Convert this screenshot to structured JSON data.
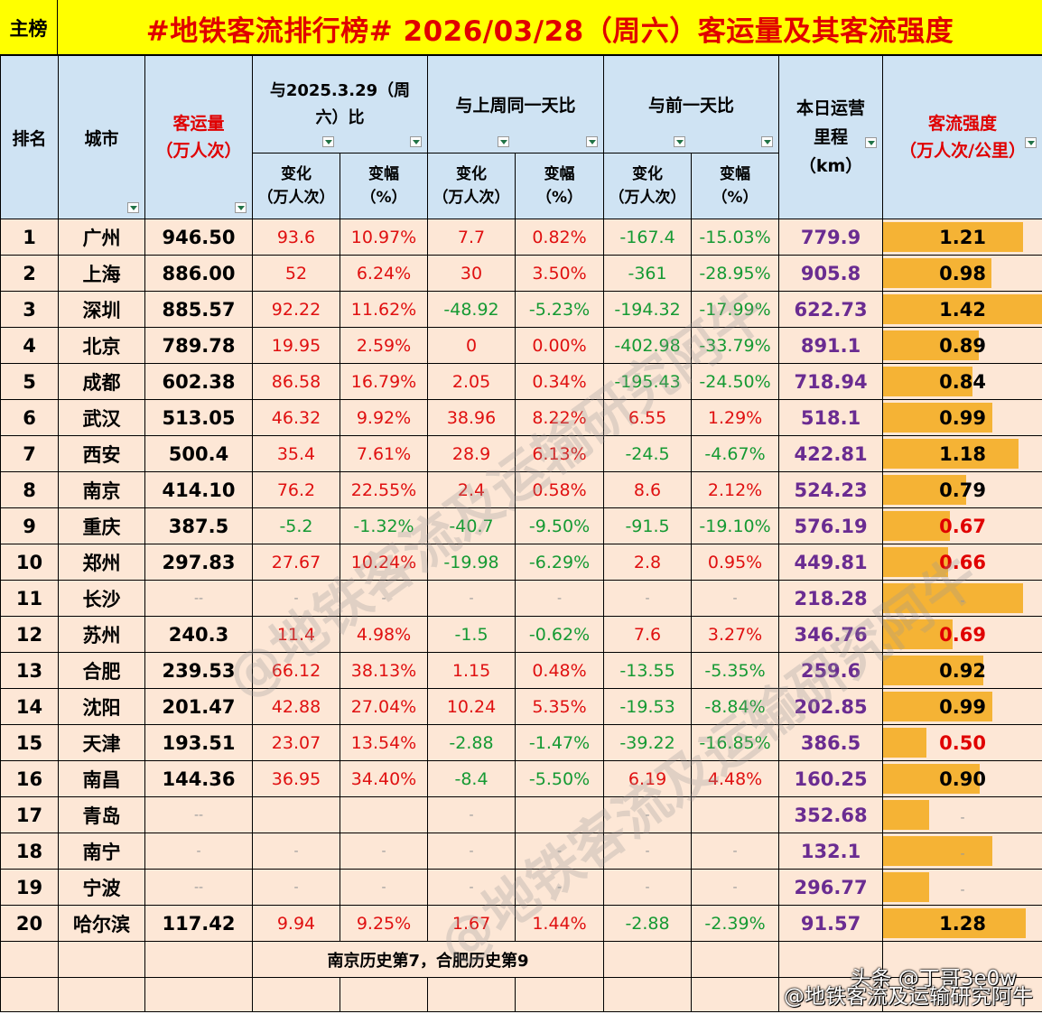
{
  "header": {
    "tag": "主榜",
    "title": "#地铁客流排行榜# 2026/03/28（周六）客运量及其客流强度"
  },
  "columns": {
    "rank": "排名",
    "city": "城市",
    "volume_line1": "客运量",
    "volume_line2": "（万人次）",
    "yoy_line1": "与2025.3.29（周",
    "yoy_line2": "六）比",
    "wow": "与上周同一天比",
    "dod": "与前一天比",
    "km_line1": "本日运营",
    "km_line2": "里程",
    "km_line3": "（km）",
    "intensity_line1": "客流强度",
    "intensity_line2": "（万人次/公里）",
    "change_line1": "变化",
    "change_line2": "（万人次）",
    "pct_line1": "变幅",
    "pct_line2": "（%）"
  },
  "rows": [
    {
      "rank": "1",
      "city": "广州",
      "volume": "946.50",
      "yoy_chg": "93.6",
      "yoy_pct": "10.97%",
      "wow_chg": "7.7",
      "wow_pct": "0.82%",
      "dod_chg": "-167.4",
      "dod_pct": "-15.03%",
      "km": "779.9",
      "intensity": "1.21",
      "bar": 0.88
    },
    {
      "rank": "2",
      "city": "上海",
      "volume": "886.00",
      "yoy_chg": "52",
      "yoy_pct": "6.24%",
      "wow_chg": "30",
      "wow_pct": "3.50%",
      "dod_chg": "-361",
      "dod_pct": "-28.95%",
      "km": "905.8",
      "intensity": "0.98",
      "bar": 0.68
    },
    {
      "rank": "3",
      "city": "深圳",
      "volume": "885.57",
      "yoy_chg": "92.22",
      "yoy_pct": "11.62%",
      "wow_chg": "-48.92",
      "wow_pct": "-5.23%",
      "dod_chg": "-194.32",
      "dod_pct": "-17.99%",
      "km": "622.73",
      "intensity": "1.42",
      "bar": 1.0
    },
    {
      "rank": "4",
      "city": "北京",
      "volume": "789.78",
      "yoy_chg": "19.95",
      "yoy_pct": "2.59%",
      "wow_chg": "0",
      "wow_pct": "0.00%",
      "dod_chg": "-402.98",
      "dod_pct": "-33.79%",
      "km": "891.1",
      "intensity": "0.89",
      "bar": 0.6
    },
    {
      "rank": "5",
      "city": "成都",
      "volume": "602.38",
      "yoy_chg": "86.58",
      "yoy_pct": "16.79%",
      "wow_chg": "2.05",
      "wow_pct": "0.34%",
      "dod_chg": "-195.43",
      "dod_pct": "-24.50%",
      "km": "718.94",
      "intensity": "0.84",
      "bar": 0.56
    },
    {
      "rank": "6",
      "city": "武汉",
      "volume": "513.05",
      "yoy_chg": "46.32",
      "yoy_pct": "9.92%",
      "wow_chg": "38.96",
      "wow_pct": "8.22%",
      "dod_chg": "6.55",
      "dod_pct": "1.29%",
      "km": "518.1",
      "intensity": "0.99",
      "bar": 0.69
    },
    {
      "rank": "7",
      "city": "西安",
      "volume": "500.4",
      "yoy_chg": "35.4",
      "yoy_pct": "7.61%",
      "wow_chg": "28.9",
      "wow_pct": "6.13%",
      "dod_chg": "-24.5",
      "dod_pct": "-4.67%",
      "km": "422.81",
      "intensity": "1.18",
      "bar": 0.85
    },
    {
      "rank": "8",
      "city": "南京",
      "volume": "414.10",
      "yoy_chg": "76.2",
      "yoy_pct": "22.55%",
      "wow_chg": "2.4",
      "wow_pct": "0.58%",
      "dod_chg": "8.6",
      "dod_pct": "2.12%",
      "km": "524.23",
      "intensity": "0.79",
      "bar": 0.52
    },
    {
      "rank": "9",
      "city": "重庆",
      "volume": "387.5",
      "yoy_chg": "-5.2",
      "yoy_pct": "-1.32%",
      "wow_chg": "-40.7",
      "wow_pct": "-9.50%",
      "dod_chg": "-91.5",
      "dod_pct": "-19.10%",
      "km": "576.19",
      "intensity": "0.67",
      "bar": 0.42
    },
    {
      "rank": "10",
      "city": "郑州",
      "volume": "297.83",
      "yoy_chg": "27.67",
      "yoy_pct": "10.24%",
      "wow_chg": "-19.98",
      "wow_pct": "-6.29%",
      "dod_chg": "2.8",
      "dod_pct": "0.95%",
      "km": "449.81",
      "intensity": "0.66",
      "bar": 0.41
    },
    {
      "rank": "11",
      "city": "长沙",
      "volume": "--",
      "yoy_chg": "-",
      "yoy_pct": "-",
      "wow_chg": "-",
      "wow_pct": "-",
      "dod_chg": "-",
      "dod_pct": "-",
      "km": "218.28",
      "intensity": "-",
      "bar": 0.88
    },
    {
      "rank": "12",
      "city": "苏州",
      "volume": "240.3",
      "yoy_chg": "11.4",
      "yoy_pct": "4.98%",
      "wow_chg": "-1.5",
      "wow_pct": "-0.62%",
      "dod_chg": "7.6",
      "dod_pct": "3.27%",
      "km": "346.76",
      "intensity": "0.69",
      "bar": 0.44
    },
    {
      "rank": "13",
      "city": "合肥",
      "volume": "239.53",
      "yoy_chg": "66.12",
      "yoy_pct": "38.13%",
      "wow_chg": "1.15",
      "wow_pct": "0.48%",
      "dod_chg": "-13.55",
      "dod_pct": "-5.35%",
      "km": "259.6",
      "intensity": "0.92",
      "bar": 0.63
    },
    {
      "rank": "14",
      "city": "沈阳",
      "volume": "201.47",
      "yoy_chg": "42.88",
      "yoy_pct": "27.04%",
      "wow_chg": "10.24",
      "wow_pct": "5.35%",
      "dod_chg": "-19.53",
      "dod_pct": "-8.84%",
      "km": "202.85",
      "intensity": "0.99",
      "bar": 0.69
    },
    {
      "rank": "15",
      "city": "天津",
      "volume": "193.51",
      "yoy_chg": "23.07",
      "yoy_pct": "13.54%",
      "wow_chg": "-2.88",
      "wow_pct": "-1.47%",
      "dod_chg": "-39.22",
      "dod_pct": "-16.85%",
      "km": "386.5",
      "intensity": "0.50",
      "bar": 0.27
    },
    {
      "rank": "16",
      "city": "南昌",
      "volume": "144.36",
      "yoy_chg": "36.95",
      "yoy_pct": "34.40%",
      "wow_chg": "-8.4",
      "wow_pct": "-5.50%",
      "dod_chg": "6.19",
      "dod_pct": "4.48%",
      "km": "160.25",
      "intensity": "0.90",
      "bar": 0.61
    },
    {
      "rank": "17",
      "city": "青岛",
      "volume": "--",
      "yoy_chg": "",
      "yoy_pct": "",
      "wow_chg": "-",
      "wow_pct": "",
      "dod_chg": "-",
      "dod_pct": "",
      "km": "352.68",
      "intensity": "-",
      "bar": 0.29
    },
    {
      "rank": "18",
      "city": "南宁",
      "volume": "-",
      "yoy_chg": "-",
      "yoy_pct": "-",
      "wow_chg": "-",
      "wow_pct": "-",
      "dod_chg": "-",
      "dod_pct": "-",
      "km": "132.1",
      "intensity": "-",
      "bar": 0.69
    },
    {
      "rank": "19",
      "city": "宁波",
      "volume": "--",
      "yoy_chg": "-",
      "yoy_pct": "-",
      "wow_chg": "-",
      "wow_pct": "-",
      "dod_chg": "-",
      "dod_pct": "-",
      "km": "296.77",
      "intensity": "-",
      "bar": 0.29
    },
    {
      "rank": "20",
      "city": "哈尔滨",
      "volume": "117.42",
      "yoy_chg": "9.94",
      "yoy_pct": "9.25%",
      "wow_chg": "1.67",
      "wow_pct": "1.44%",
      "dod_chg": "-2.88",
      "dod_pct": "-2.39%",
      "km": "91.57",
      "intensity": "1.28",
      "bar": 0.9
    }
  ],
  "note": "南京历史第7，合肥历史第9",
  "watermark": "@地铁客流及运输研究阿牛",
  "credit_line1": "头条 @丁哥3e0w",
  "credit_line2": "@地铁客流及运输研究阿牛",
  "colors": {
    "title_bg": "#ffff00",
    "title_text": "#e00000",
    "header_bg": "#cfe3f3",
    "row_bg": "#fde7d6",
    "bar": "#f5b335",
    "positive": "#e01010",
    "negative": "#159a33",
    "mileage": "#6a2c91"
  }
}
